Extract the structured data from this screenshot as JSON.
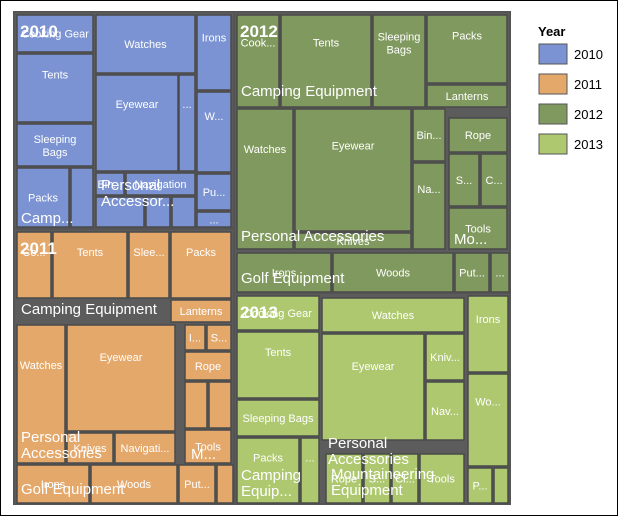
{
  "chart_data": {
    "type": "treemap",
    "title": "",
    "legend": {
      "title": "Year",
      "placement": "top-right",
      "entries": [
        {
          "label": "2010",
          "color": "#7b93d2"
        },
        {
          "label": "2011",
          "color": "#e4a86b"
        },
        {
          "label": "2012",
          "color": "#80995e"
        },
        {
          "label": "2013",
          "color": "#aec86f"
        }
      ]
    },
    "years": [
      {
        "label": "2010",
        "groups": [
          {
            "label": "Camp...",
            "leaves": [
              "Cooking Gear",
              "Tents",
              "Sleeping Bags",
              "Packs",
              ""
            ]
          },
          {
            "label": "Personal Accessor...",
            "leaves": [
              "Watches",
              "Eyewear",
              "...",
              "Bin...",
              "Navigation",
              "",
              "",
              ""
            ]
          },
          {
            "label": "",
            "leaves": [
              "Irons",
              "W...",
              "Pu...",
              "..."
            ]
          }
        ]
      },
      {
        "label": "2011",
        "groups": [
          {
            "label": "Camping Equipment",
            "leaves": [
              "Co...",
              "Tents",
              "Slee...",
              "Packs",
              "Lanterns"
            ]
          },
          {
            "label": "Personal Accessories",
            "leaves": [
              "Watches",
              "Eyewear",
              "Knives",
              "Navigati..."
            ]
          },
          {
            "label": "M...",
            "leaves": [
              "I...",
              "S...",
              "Rope",
              "",
              "",
              "Tools"
            ]
          },
          {
            "label": "Golf Equipment",
            "leaves": [
              "Irons",
              "Woods",
              "Put...",
              ""
            ]
          }
        ]
      },
      {
        "label": "2012",
        "groups": [
          {
            "label": "Camping Equipment",
            "leaves": [
              "Cook...",
              "Tents",
              "Sleeping Bags",
              "Packs",
              "Lanterns"
            ]
          },
          {
            "label": "Personal Accessories",
            "leaves": [
              "Watches",
              "Eyewear",
              "Knives",
              "Bin...",
              "Na..."
            ]
          },
          {
            "label": "Mo...",
            "leaves": [
              "Rope",
              "S...",
              "C...",
              "Tools"
            ]
          },
          {
            "label": "Golf Equipment",
            "leaves": [
              "Irons",
              "Woods",
              "Put...",
              "..."
            ]
          }
        ]
      },
      {
        "label": "2013",
        "groups": [
          {
            "label": "Camping Equip...",
            "leaves": [
              "Cooking Gear",
              "Tents",
              "Sleeping Bags",
              "Packs",
              "..."
            ]
          },
          {
            "label": "Personal Accessories",
            "leaves": [
              "Watches",
              "Eyewear",
              "Kniv...",
              "Nav..."
            ]
          },
          {
            "label": "",
            "leaves": [
              "Irons",
              "Wo...",
              "P...",
              ""
            ]
          },
          {
            "label": "Mountaineering Equipment",
            "leaves": [
              "Rope",
              "S...",
              "Cl...",
              "Tools"
            ]
          }
        ]
      }
    ]
  }
}
